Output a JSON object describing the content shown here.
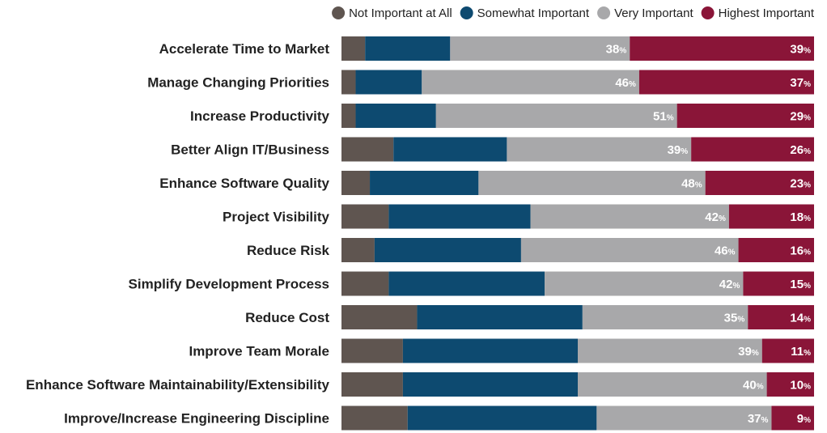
{
  "chart_data": {
    "type": "bar",
    "orientation": "horizontal",
    "stacked": true,
    "legend_placement": "top-right",
    "grid": false,
    "xlim": [
      0,
      100
    ],
    "categories": [
      "Accelerate Time to Market",
      "Manage Changing Priorities",
      "Increase Productivity",
      "Better Align IT/Business",
      "Enhance Software Quality",
      "Project Visibility",
      "Reduce Risk",
      "Simplify Development Process",
      "Reduce Cost",
      "Improve Team Morale",
      "Enhance Software Maintainability/Extensibility",
      "Improve/Increase Engineering Discipline"
    ],
    "series": [
      {
        "name": "Not Important at All",
        "color": "#5f5550",
        "values": [
          5,
          3,
          3,
          11,
          6,
          10,
          7,
          10,
          16,
          13,
          13,
          14
        ]
      },
      {
        "name": "Somewhat Important",
        "color": "#0d4a70",
        "values": [
          18,
          14,
          17,
          24,
          23,
          30,
          31,
          33,
          35,
          37,
          37,
          40
        ]
      },
      {
        "name": "Very Important",
        "color": "#a8a8aa",
        "values": [
          38,
          46,
          51,
          39,
          48,
          42,
          46,
          42,
          35,
          39,
          40,
          37
        ]
      },
      {
        "name": "Highest Important",
        "color": "#8a1538",
        "values": [
          39,
          37,
          29,
          26,
          23,
          18,
          16,
          15,
          14,
          11,
          10,
          9
        ]
      }
    ],
    "labeled_series": [
      "Very Important",
      "Highest Important"
    ],
    "value_suffix": "%"
  }
}
